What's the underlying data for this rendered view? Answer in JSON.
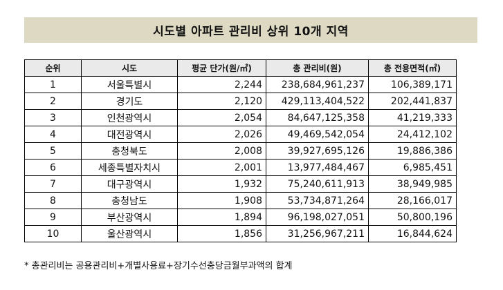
{
  "title": "시도별 아파트 관리비 상위 10개 지역",
  "table": {
    "headers": [
      "순위",
      "시도",
      "평균 단가(원/㎡)",
      "총 관리비(원)",
      "총 전용면적(㎡)"
    ],
    "rows": [
      {
        "rank": "1",
        "region": "서울특별시",
        "unit_price": "2,244",
        "total_fee": "238,684,961,237",
        "total_area": "106,389,171"
      },
      {
        "rank": "2",
        "region": "경기도",
        "unit_price": "2,120",
        "total_fee": "429,113,404,522",
        "total_area": "202,441,837"
      },
      {
        "rank": "3",
        "region": "인천광역시",
        "unit_price": "2,054",
        "total_fee": "84,647,125,358",
        "total_area": "41,219,333"
      },
      {
        "rank": "4",
        "region": "대전광역시",
        "unit_price": "2,026",
        "total_fee": "49,469,542,054",
        "total_area": "24,412,102"
      },
      {
        "rank": "5",
        "region": "충청북도",
        "unit_price": "2,008",
        "total_fee": "39,927,695,126",
        "total_area": "19,886,386"
      },
      {
        "rank": "6",
        "region": "세종특별자치시",
        "unit_price": "2,001",
        "total_fee": "13,977,484,467",
        "total_area": "6,985,451"
      },
      {
        "rank": "7",
        "region": "대구광역시",
        "unit_price": "1,932",
        "total_fee": "75,240,611,913",
        "total_area": "38,949,985"
      },
      {
        "rank": "8",
        "region": "충청남도",
        "unit_price": "1,908",
        "total_fee": "53,734,871,264",
        "total_area": "28,166,017"
      },
      {
        "rank": "9",
        "region": "부산광역시",
        "unit_price": "1,894",
        "total_fee": "96,198,027,051",
        "total_area": "50,800,196"
      },
      {
        "rank": "10",
        "region": "울산광역시",
        "unit_price": "1,856",
        "total_fee": "31,256,967,211",
        "total_area": "16,844,624"
      }
    ]
  },
  "footnote": "* 총관리비는 공용관리비+개별사용료+장기수선충당금월부과액의 합계",
  "colors": {
    "title_background": "#ddd9c3",
    "header_background": "#eaeaea",
    "border": "#000000"
  }
}
